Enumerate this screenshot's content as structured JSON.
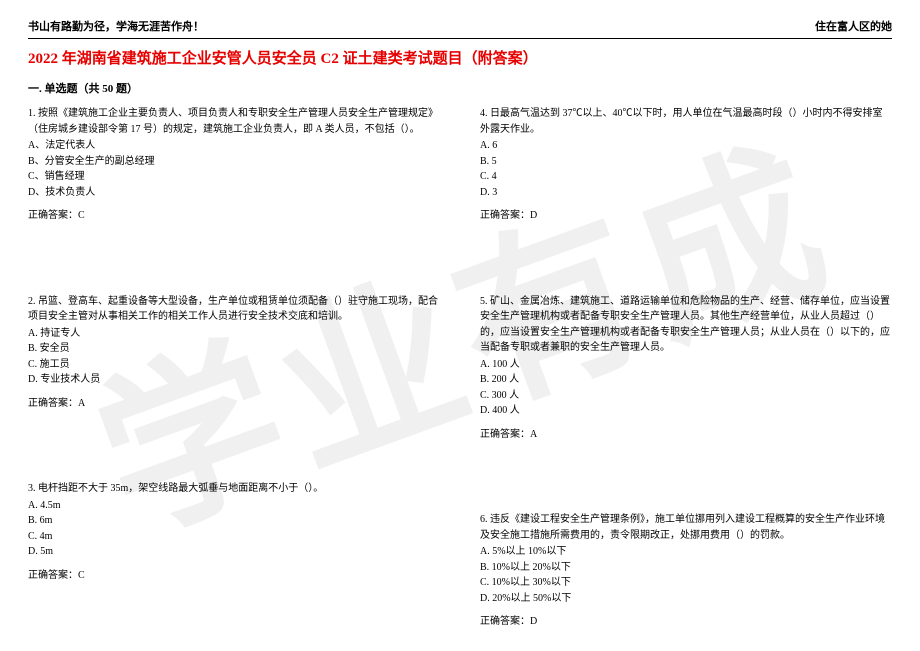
{
  "header": {
    "left": "书山有路勤为径，学海无涯苦作舟！",
    "right": "住在富人区的她"
  },
  "title": "2022 年湖南省建筑施工企业安管人员安全员 C2 证土建类考试题目（附答案）",
  "section": "一. 单选题（共 50 题）",
  "watermark": "学业有成",
  "questions_left": [
    {
      "stem": "1. 按照《建筑施工企业主要负责人、项目负责人和专职安全生产管理人员安全生产管理规定》（住房城乡建设部令第 17 号）的规定，建筑施工企业负责人，即 A 类人员，不包括（）。",
      "options": [
        "A、法定代表人",
        "B、分管安全生产的副总经理",
        "C、销售经理",
        "D、技术负责人"
      ],
      "answer": "正确答案：C"
    },
    {
      "stem": "2. 吊篮、登高车、起重设备等大型设备，生产单位或租赁单位须配备（）驻守施工现场，配合项目安全主管对从事相关工作的相关工作人员进行安全技术交底和培训。",
      "options": [
        "A. 持证专人",
        "B. 安全员",
        "C. 施工员",
        "D. 专业技术人员"
      ],
      "answer": "正确答案：A"
    },
    {
      "stem": "3. 电杆挡距不大于 35m，架空线路最大弧垂与地面距离不小于（）。",
      "options": [
        "A. 4.5m",
        "B. 6m",
        "C. 4m",
        "D. 5m"
      ],
      "answer": "正确答案：C"
    }
  ],
  "questions_right": [
    {
      "stem": "4. 日最高气温达到 37℃以上、40℃以下时，用人单位在气温最高时段（）小时内不得安排室外露天作业。",
      "options": [
        "A. 6",
        "B. 5",
        "C. 4",
        "D. 3"
      ],
      "answer": "正确答案：D"
    },
    {
      "stem": "5. 矿山、金属冶炼、建筑施工、道路运输单位和危险物品的生产、经营、储存单位，应当设置安全生产管理机构或者配备专职安全生产管理人员。其他生产经营单位，从业人员超过（）的，应当设置安全生产管理机构或者配备专职安全生产管理人员；从业人员在（）以下的，应当配备专职或者兼职的安全生产管理人员。",
      "options": [
        "A. 100 人",
        "B. 200 人",
        "C. 300 人",
        "D. 400 人"
      ],
      "answer": "正确答案：A"
    },
    {
      "stem": "6. 违反《建设工程安全生产管理条例》，施工单位挪用列入建设工程概算的安全生产作业环境及安全施工措施所需费用的，责令限期改正，处挪用费用（）的罚款。",
      "options": [
        "A. 5%以上 10%以下",
        "B. 10%以上 20%以下",
        "C. 10%以上 30%以下",
        "D. 20%以上 50%以下"
      ],
      "answer": "正确答案：D"
    }
  ]
}
